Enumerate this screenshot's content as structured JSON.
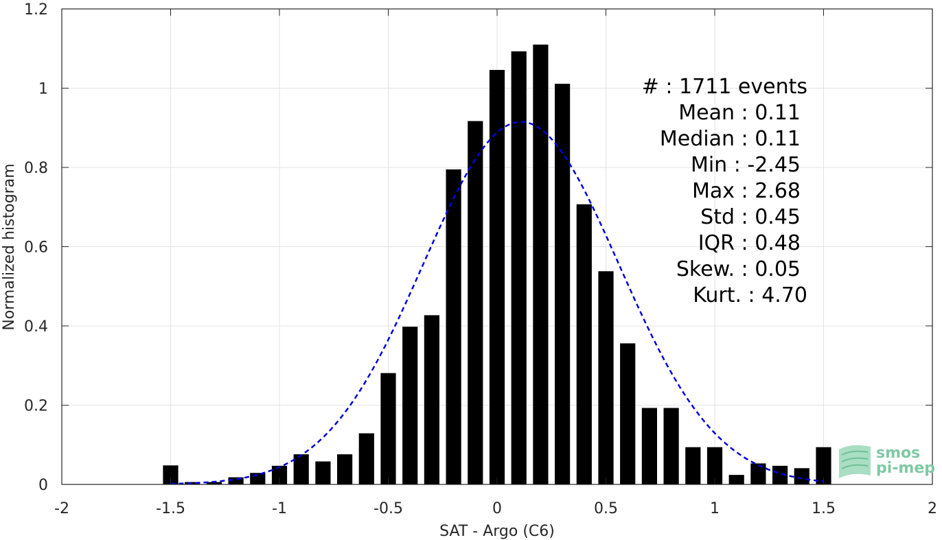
{
  "chart_data": {
    "type": "bar",
    "xlabel": "SAT - Argo (C6)",
    "ylabel": "Normalized histogram",
    "xlim": [
      -2,
      2
    ],
    "ylim": [
      0,
      1.2
    ],
    "xticks": [
      -2,
      -1.5,
      -1,
      -0.5,
      0,
      0.5,
      1,
      1.5,
      2
    ],
    "xtick_labels": [
      "-2",
      "-1.5",
      "-1",
      "-0.5",
      "0",
      "0.5",
      "1",
      "1.5",
      "2"
    ],
    "yticks": [
      0,
      0.2,
      0.4,
      0.6,
      0.8,
      1,
      1.2
    ],
    "ytick_labels": [
      "0",
      "0.2",
      "0.4",
      "0.6",
      "0.8",
      "1",
      "1.2"
    ],
    "grid": true,
    "bar_color": "#000000",
    "bars": {
      "x": [
        -1.5,
        -1.4,
        -1.3,
        -1.2,
        -1.1,
        -1.0,
        -0.9,
        -0.8,
        -0.7,
        -0.6,
        -0.5,
        -0.4,
        -0.3,
        -0.2,
        -0.1,
        0.0,
        0.1,
        0.2,
        0.3,
        0.4,
        0.5,
        0.6,
        0.7,
        0.8,
        0.9,
        1.0,
        1.1,
        1.2,
        1.3,
        1.4,
        1.5
      ],
      "values": [
        0.048,
        0.006,
        0.006,
        0.018,
        0.029,
        0.047,
        0.076,
        0.058,
        0.076,
        0.129,
        0.281,
        0.398,
        0.427,
        0.795,
        0.917,
        1.046,
        1.093,
        1.11,
        1.011,
        0.707,
        0.538,
        0.356,
        0.193,
        0.193,
        0.094,
        0.094,
        0.024,
        0.053,
        0.047,
        0.041,
        0.094
      ],
      "width": 0.07
    },
    "fit": {
      "type": "normal",
      "style": "dashed",
      "color": "#0000dd",
      "mean": 0.11,
      "std": 0.45,
      "x_range": [
        -1.5,
        1.5
      ],
      "peak": 0.915
    },
    "annotation_lines": [
      "#  : 1711 events",
      "Mean : 0.11",
      "Median : 0.11",
      "Min : -2.45",
      "Max : 2.68",
      "Std : 0.45",
      "IQR : 0.48",
      "Skew. : 0.05",
      "Kurt. : 4.70"
    ]
  },
  "logo": {
    "line1": "smos",
    "line2": "pi-mep",
    "color": "#7fc9a4"
  }
}
